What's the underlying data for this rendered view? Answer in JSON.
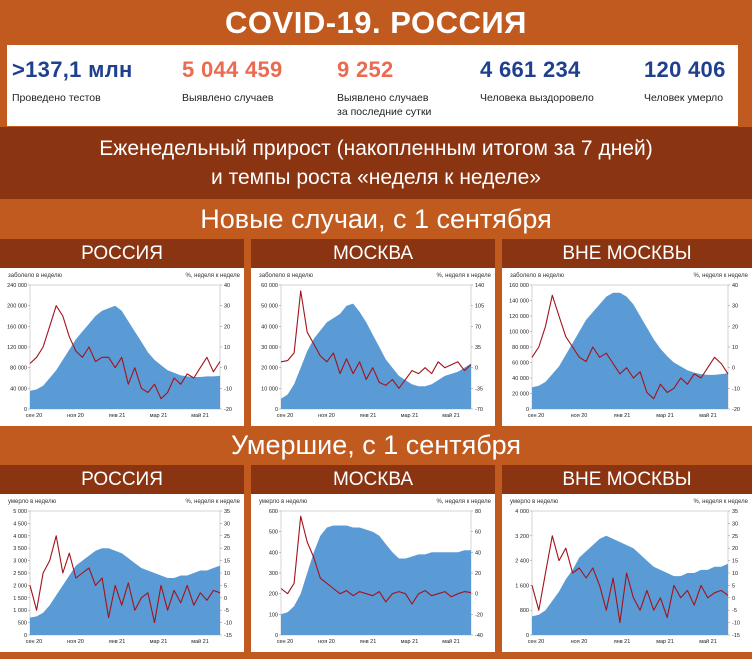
{
  "title": "COVID-19. РОССИЯ",
  "stats": [
    {
      "value": ">137,1 млн",
      "label": "Проведено тестов",
      "color": "#1f3f8f"
    },
    {
      "value": "5 044 459",
      "label": "Выявлено случаев",
      "color": "#ec6a50"
    },
    {
      "value": "9 252",
      "label": "Выявлено случаев за последние сутки",
      "color": "#ec6a50"
    },
    {
      "value": "4 661 234",
      "label": "Человека выздоровело",
      "color": "#1f3f8f"
    },
    {
      "value": "120 406",
      "label": "Человек умерло",
      "color": "#1f3f8f"
    }
  ],
  "subtitle_line1": "Еженедельный прирост (накопленным итогом за 7 дней)",
  "subtitle_line2": "и темпы роста «неделя к неделе»",
  "section_cases": "Новые случаи, с 1 сентября",
  "section_deaths": "Умершие, с 1 сентября",
  "colors": {
    "area": "#5b9bd5",
    "line": "#a3121a",
    "header_dark": "#8b3412",
    "header_light": "#c05a1e"
  },
  "chart_data": [
    {
      "type": "area",
      "panel_title": "РОССИЯ",
      "ylabel": "заболело в неделю",
      "y2label": "%, неделя к неделе",
      "xticks": [
        "сен 20",
        "ноя 20",
        "янв 21",
        "мар 21",
        "май 21"
      ],
      "ylim": [
        0,
        240000
      ],
      "yticks": [
        "0",
        "40 000",
        "80 000",
        "120 000",
        "160 000",
        "200 000",
        "240 000"
      ],
      "y2lim": [
        -20,
        40
      ],
      "y2ticks": [
        "-20",
        "-10",
        "0",
        "10",
        "20",
        "30",
        "40"
      ],
      "series": [
        {
          "values": [
            35000,
            38000,
            45000,
            60000,
            75000,
            95000,
            115000,
            135000,
            150000,
            165000,
            180000,
            190000,
            195000,
            200000,
            190000,
            170000,
            150000,
            130000,
            110000,
            95000,
            85000,
            75000,
            70000,
            65000,
            63000,
            62000,
            62000,
            63000,
            63000,
            64000
          ]
        },
        {
          "axis": "right",
          "values": [
            2,
            5,
            10,
            20,
            30,
            25,
            15,
            8,
            5,
            10,
            3,
            5,
            5,
            0,
            5,
            -8,
            0,
            -10,
            -12,
            -8,
            -15,
            -12,
            -5,
            -8,
            -3,
            -5,
            0,
            5,
            -2,
            3
          ]
        }
      ]
    },
    {
      "type": "area",
      "panel_title": "МОСКВА",
      "ylabel": "заболело в неделю",
      "y2label": "%, неделя к неделе",
      "xticks": [
        "сен 20",
        "ноя 20",
        "янв 21",
        "мар 21",
        "май 21"
      ],
      "ylim": [
        0,
        60000
      ],
      "yticks": [
        "0",
        "10 000",
        "20 000",
        "30 000",
        "40 000",
        "50 000",
        "60 000"
      ],
      "y2lim": [
        -70,
        140
      ],
      "y2ticks": [
        "-70",
        "-35",
        "0",
        "35",
        "70",
        "105",
        "140"
      ],
      "series": [
        {
          "values": [
            5000,
            7000,
            12000,
            20000,
            28000,
            34000,
            38000,
            42000,
            44000,
            46000,
            50000,
            51000,
            47000,
            42000,
            36000,
            30000,
            24000,
            20000,
            16000,
            14000,
            12000,
            11000,
            11000,
            12000,
            14000,
            16000,
            17000,
            18000,
            20000,
            22000
          ]
        },
        {
          "axis": "right",
          "values": [
            10,
            12,
            25,
            130,
            60,
            40,
            20,
            10,
            25,
            -10,
            15,
            -10,
            10,
            -20,
            0,
            -25,
            -30,
            -20,
            -35,
            -20,
            -5,
            -10,
            0,
            -10,
            10,
            0,
            5,
            10,
            -5,
            5
          ]
        }
      ]
    },
    {
      "type": "area",
      "panel_title": "ВНЕ МОСКВЫ",
      "ylabel": "заболело в неделю",
      "y2label": "%, неделя к неделе",
      "xticks": [
        "сен 20",
        "ноя 20",
        "янв 21",
        "мар 21",
        "май 21"
      ],
      "ylim": [
        0,
        160000
      ],
      "yticks": [
        "0",
        "20 000",
        "40 000",
        "60 000",
        "80 000",
        "100 000",
        "120 000",
        "140 000",
        "160 000"
      ],
      "y2lim": [
        -20,
        40
      ],
      "y2ticks": [
        "-20",
        "-10",
        "0",
        "10",
        "20",
        "30",
        "40"
      ],
      "series": [
        {
          "values": [
            28000,
            30000,
            35000,
            45000,
            55000,
            70000,
            85000,
            100000,
            115000,
            125000,
            135000,
            145000,
            150000,
            150000,
            145000,
            135000,
            120000,
            105000,
            90000,
            78000,
            68000,
            60000,
            55000,
            50000,
            47000,
            45000,
            44000,
            44000,
            45000,
            46000
          ]
        },
        {
          "axis": "right",
          "values": [
            5,
            10,
            20,
            35,
            25,
            15,
            10,
            5,
            3,
            10,
            5,
            7,
            2,
            -3,
            0,
            -5,
            -2,
            -12,
            -15,
            -8,
            -12,
            -10,
            -5,
            -8,
            -3,
            -5,
            0,
            5,
            2,
            -3
          ]
        }
      ]
    },
    {
      "type": "area",
      "panel_title": "РОССИЯ",
      "ylabel": "умерло в неделю",
      "y2label": "%, неделя к неделе",
      "xticks": [
        "сен 20",
        "ноя 20",
        "янв 21",
        "мар 21",
        "май 21"
      ],
      "ylim": [
        0,
        5000
      ],
      "yticks": [
        "0",
        "500",
        "1 000",
        "1 500",
        "2 000",
        "2 500",
        "3 000",
        "3 500",
        "4 000",
        "4 500",
        "5 000"
      ],
      "y2lim": [
        -15,
        35
      ],
      "y2ticks": [
        "-15",
        "-10",
        "-5",
        "0",
        "5",
        "10",
        "15",
        "20",
        "25",
        "30",
        "35"
      ],
      "series": [
        {
          "values": [
            700,
            750,
            900,
            1200,
            1600,
            2000,
            2400,
            2800,
            3000,
            3200,
            3400,
            3500,
            3500,
            3400,
            3300,
            3100,
            2900,
            2700,
            2600,
            2500,
            2400,
            2300,
            2300,
            2400,
            2400,
            2500,
            2600,
            2600,
            2700,
            2800
          ]
        },
        {
          "axis": "right",
          "values": [
            5,
            -5,
            10,
            15,
            25,
            10,
            18,
            8,
            10,
            12,
            5,
            8,
            -8,
            5,
            -3,
            6,
            -5,
            0,
            2,
            -10,
            5,
            -5,
            3,
            -2,
            5,
            -3,
            2,
            -1,
            3,
            2
          ]
        }
      ]
    },
    {
      "type": "area",
      "panel_title": "МОСКВА",
      "ylabel": "умерло в неделю",
      "y2label": "%, неделя к неделе",
      "xticks": [
        "сен 20",
        "ноя 20",
        "янв 21",
        "мар 21",
        "май 21"
      ],
      "ylim": [
        0,
        600
      ],
      "yticks": [
        "0",
        "100",
        "200",
        "300",
        "400",
        "500",
        "600"
      ],
      "y2lim": [
        -40,
        80
      ],
      "y2ticks": [
        "-40",
        "-20",
        "0",
        "20",
        "40",
        "60",
        "80"
      ],
      "series": [
        {
          "values": [
            100,
            110,
            140,
            200,
            300,
            400,
            480,
            520,
            530,
            530,
            530,
            520,
            520,
            510,
            500,
            480,
            440,
            400,
            370,
            370,
            380,
            390,
            390,
            400,
            400,
            400,
            400,
            400,
            410,
            410
          ]
        },
        {
          "axis": "right",
          "values": [
            5,
            0,
            10,
            75,
            50,
            35,
            15,
            10,
            5,
            0,
            3,
            -2,
            2,
            0,
            -2,
            2,
            -8,
            0,
            2,
            0,
            -10,
            0,
            3,
            -2,
            0,
            2,
            -3,
            0,
            2,
            1
          ]
        }
      ]
    },
    {
      "type": "area",
      "panel_title": "ВНЕ МОСКВЫ",
      "ylabel": "умерло в неделю",
      "y2label": "%, неделя к неделе",
      "xticks": [
        "сен 20",
        "ноя 20",
        "янв 21",
        "мар 21",
        "май 21"
      ],
      "ylim": [
        0,
        4000
      ],
      "yticks": [
        "0",
        "800",
        "1 600",
        "2 400",
        "3 200",
        "4 000"
      ],
      "y2lim": [
        -15,
        35
      ],
      "y2ticks": [
        "-15",
        "-10",
        "-5",
        "0",
        "5",
        "10",
        "15",
        "20",
        "25",
        "30",
        "35"
      ],
      "series": [
        {
          "values": [
            600,
            650,
            800,
            1100,
            1400,
            1800,
            2100,
            2500,
            2700,
            2900,
            3100,
            3200,
            3100,
            3000,
            2900,
            2800,
            2600,
            2400,
            2200,
            2100,
            2000,
            1900,
            1900,
            2000,
            2000,
            2100,
            2100,
            2200,
            2200,
            2300
          ]
        },
        {
          "axis": "right",
          "values": [
            5,
            -5,
            10,
            25,
            15,
            20,
            10,
            12,
            8,
            12,
            5,
            -5,
            8,
            -10,
            10,
            0,
            -5,
            3,
            -5,
            0,
            -8,
            5,
            0,
            3,
            -3,
            5,
            0,
            2,
            3,
            1
          ]
        }
      ]
    }
  ]
}
